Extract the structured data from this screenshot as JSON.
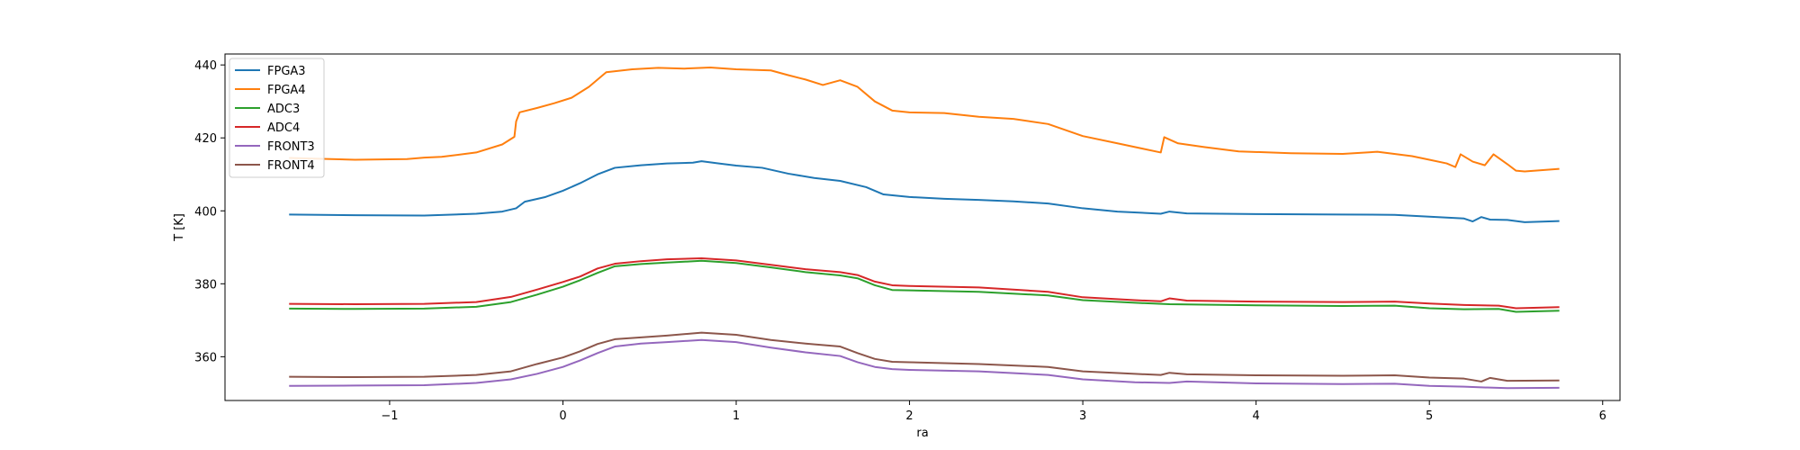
{
  "chart_data": {
    "type": "line",
    "title": "",
    "xlabel": "ra",
    "ylabel": "T [K]",
    "xlim": [
      -1.95,
      6.1
    ],
    "ylim": [
      348,
      443
    ],
    "xticks": [
      -1,
      0,
      1,
      2,
      3,
      4,
      5,
      6
    ],
    "xtick_labels": [
      "−1",
      "0",
      "1",
      "2",
      "3",
      "4",
      "5",
      "6"
    ],
    "yticks": [
      360,
      380,
      400,
      420,
      440
    ],
    "ytick_labels": [
      "360",
      "380",
      "400",
      "420",
      "440"
    ],
    "grid": false,
    "legend_position": "top-left",
    "series": [
      {
        "name": "FPGA3",
        "color": "#1f77b4",
        "points": [
          [
            -1.58,
            399.0
          ],
          [
            -1.2,
            398.8
          ],
          [
            -0.8,
            398.7
          ],
          [
            -0.5,
            399.2
          ],
          [
            -0.35,
            399.8
          ],
          [
            -0.27,
            400.7
          ],
          [
            -0.22,
            402.5
          ],
          [
            -0.1,
            403.8
          ],
          [
            0.0,
            405.5
          ],
          [
            0.1,
            407.6
          ],
          [
            0.2,
            410.0
          ],
          [
            0.3,
            411.8
          ],
          [
            0.45,
            412.5
          ],
          [
            0.6,
            413.0
          ],
          [
            0.75,
            413.2
          ],
          [
            0.8,
            413.6
          ],
          [
            0.9,
            413.0
          ],
          [
            1.0,
            412.4
          ],
          [
            1.15,
            411.8
          ],
          [
            1.3,
            410.2
          ],
          [
            1.45,
            409.0
          ],
          [
            1.6,
            408.2
          ],
          [
            1.75,
            406.5
          ],
          [
            1.85,
            404.5
          ],
          [
            2.0,
            403.8
          ],
          [
            2.2,
            403.3
          ],
          [
            2.4,
            403.0
          ],
          [
            2.6,
            402.6
          ],
          [
            2.8,
            402.0
          ],
          [
            3.0,
            400.7
          ],
          [
            3.2,
            399.8
          ],
          [
            3.45,
            399.2
          ],
          [
            3.5,
            399.8
          ],
          [
            3.6,
            399.3
          ],
          [
            4.0,
            399.1
          ],
          [
            4.5,
            399.0
          ],
          [
            4.8,
            398.9
          ],
          [
            5.0,
            398.4
          ],
          [
            5.2,
            397.9
          ],
          [
            5.25,
            397.1
          ],
          [
            5.3,
            398.3
          ],
          [
            5.35,
            397.6
          ],
          [
            5.45,
            397.5
          ],
          [
            5.55,
            396.9
          ],
          [
            5.75,
            397.2
          ]
        ]
      },
      {
        "name": "FPGA4",
        "color": "#ff7f0e",
        "points": [
          [
            -1.58,
            414.5
          ],
          [
            -1.2,
            414.0
          ],
          [
            -0.9,
            414.2
          ],
          [
            -0.8,
            414.6
          ],
          [
            -0.7,
            414.8
          ],
          [
            -0.5,
            416.0
          ],
          [
            -0.35,
            418.2
          ],
          [
            -0.28,
            420.3
          ],
          [
            -0.27,
            424.5
          ],
          [
            -0.25,
            427.0
          ],
          [
            -0.15,
            428.2
          ],
          [
            -0.05,
            429.5
          ],
          [
            0.05,
            431.0
          ],
          [
            0.15,
            434.0
          ],
          [
            0.25,
            438.0
          ],
          [
            0.4,
            438.8
          ],
          [
            0.55,
            439.2
          ],
          [
            0.7,
            439.0
          ],
          [
            0.85,
            439.3
          ],
          [
            1.0,
            438.8
          ],
          [
            1.2,
            438.5
          ],
          [
            1.3,
            437.2
          ],
          [
            1.4,
            436.0
          ],
          [
            1.5,
            434.5
          ],
          [
            1.6,
            435.8
          ],
          [
            1.7,
            434.0
          ],
          [
            1.8,
            430.0
          ],
          [
            1.9,
            427.5
          ],
          [
            2.0,
            427.0
          ],
          [
            2.2,
            426.8
          ],
          [
            2.4,
            425.8
          ],
          [
            2.6,
            425.2
          ],
          [
            2.8,
            423.8
          ],
          [
            3.0,
            420.5
          ],
          [
            3.2,
            418.5
          ],
          [
            3.35,
            417.0
          ],
          [
            3.45,
            416.0
          ],
          [
            3.47,
            420.2
          ],
          [
            3.55,
            418.5
          ],
          [
            3.7,
            417.5
          ],
          [
            3.9,
            416.3
          ],
          [
            4.2,
            415.8
          ],
          [
            4.5,
            415.6
          ],
          [
            4.7,
            416.2
          ],
          [
            4.9,
            415.0
          ],
          [
            5.0,
            414.0
          ],
          [
            5.1,
            413.0
          ],
          [
            5.15,
            412.0
          ],
          [
            5.18,
            415.5
          ],
          [
            5.25,
            413.5
          ],
          [
            5.32,
            412.5
          ],
          [
            5.37,
            415.5
          ],
          [
            5.45,
            412.8
          ],
          [
            5.5,
            411.0
          ],
          [
            5.55,
            410.8
          ],
          [
            5.75,
            411.5
          ]
        ]
      },
      {
        "name": "ADC3",
        "color": "#2ca02c",
        "points": [
          [
            -1.58,
            373.2
          ],
          [
            -1.2,
            373.1
          ],
          [
            -0.8,
            373.2
          ],
          [
            -0.5,
            373.7
          ],
          [
            -0.3,
            375.0
          ],
          [
            -0.15,
            377.0
          ],
          [
            0.0,
            379.2
          ],
          [
            0.1,
            381.0
          ],
          [
            0.2,
            383.0
          ],
          [
            0.3,
            384.8
          ],
          [
            0.45,
            385.4
          ],
          [
            0.6,
            385.8
          ],
          [
            0.8,
            386.3
          ],
          [
            1.0,
            385.7
          ],
          [
            1.2,
            384.5
          ],
          [
            1.4,
            383.2
          ],
          [
            1.6,
            382.3
          ],
          [
            1.7,
            381.5
          ],
          [
            1.8,
            379.6
          ],
          [
            1.9,
            378.3
          ],
          [
            2.0,
            378.2
          ],
          [
            2.4,
            377.8
          ],
          [
            2.8,
            376.8
          ],
          [
            3.0,
            375.5
          ],
          [
            3.3,
            374.8
          ],
          [
            3.5,
            374.4
          ],
          [
            4.0,
            374.1
          ],
          [
            4.5,
            373.9
          ],
          [
            4.8,
            374.0
          ],
          [
            5.0,
            373.3
          ],
          [
            5.2,
            373.0
          ],
          [
            5.4,
            373.1
          ],
          [
            5.5,
            372.3
          ],
          [
            5.75,
            372.6
          ]
        ]
      },
      {
        "name": "ADC4",
        "color": "#d62728",
        "points": [
          [
            -1.58,
            374.5
          ],
          [
            -1.2,
            374.4
          ],
          [
            -0.8,
            374.5
          ],
          [
            -0.5,
            375.0
          ],
          [
            -0.3,
            376.4
          ],
          [
            -0.15,
            378.4
          ],
          [
            0.0,
            380.5
          ],
          [
            0.1,
            382.0
          ],
          [
            0.2,
            384.2
          ],
          [
            0.3,
            385.5
          ],
          [
            0.45,
            386.2
          ],
          [
            0.6,
            386.7
          ],
          [
            0.8,
            387.0
          ],
          [
            1.0,
            386.4
          ],
          [
            1.2,
            385.2
          ],
          [
            1.4,
            384.0
          ],
          [
            1.6,
            383.2
          ],
          [
            1.7,
            382.4
          ],
          [
            1.8,
            380.6
          ],
          [
            1.9,
            379.6
          ],
          [
            2.0,
            379.4
          ],
          [
            2.4,
            379.0
          ],
          [
            2.8,
            377.8
          ],
          [
            3.0,
            376.3
          ],
          [
            3.3,
            375.5
          ],
          [
            3.45,
            375.2
          ],
          [
            3.5,
            376.0
          ],
          [
            3.6,
            375.4
          ],
          [
            4.0,
            375.1
          ],
          [
            4.5,
            375.0
          ],
          [
            4.8,
            375.1
          ],
          [
            5.0,
            374.6
          ],
          [
            5.2,
            374.2
          ],
          [
            5.4,
            374.0
          ],
          [
            5.5,
            373.3
          ],
          [
            5.75,
            373.6
          ]
        ]
      },
      {
        "name": "FRONT3",
        "color": "#9467bd",
        "points": [
          [
            -1.58,
            352.0
          ],
          [
            -1.2,
            352.1
          ],
          [
            -0.8,
            352.2
          ],
          [
            -0.5,
            352.8
          ],
          [
            -0.3,
            353.8
          ],
          [
            -0.15,
            355.3
          ],
          [
            0.0,
            357.2
          ],
          [
            0.1,
            359.0
          ],
          [
            0.2,
            361.0
          ],
          [
            0.3,
            362.8
          ],
          [
            0.45,
            363.6
          ],
          [
            0.6,
            364.0
          ],
          [
            0.8,
            364.6
          ],
          [
            1.0,
            364.0
          ],
          [
            1.2,
            362.5
          ],
          [
            1.4,
            361.2
          ],
          [
            1.6,
            360.2
          ],
          [
            1.7,
            358.5
          ],
          [
            1.8,
            357.2
          ],
          [
            1.9,
            356.6
          ],
          [
            2.0,
            356.4
          ],
          [
            2.4,
            356.0
          ],
          [
            2.8,
            355.0
          ],
          [
            3.0,
            353.8
          ],
          [
            3.3,
            353.0
          ],
          [
            3.5,
            352.8
          ],
          [
            3.6,
            353.2
          ],
          [
            4.0,
            352.7
          ],
          [
            4.5,
            352.5
          ],
          [
            4.8,
            352.6
          ],
          [
            5.0,
            352.0
          ],
          [
            5.2,
            351.8
          ],
          [
            5.3,
            351.6
          ],
          [
            5.45,
            351.4
          ],
          [
            5.75,
            351.5
          ]
        ]
      },
      {
        "name": "FRONT4",
        "color": "#8c564b",
        "points": [
          [
            -1.58,
            354.5
          ],
          [
            -1.2,
            354.4
          ],
          [
            -0.8,
            354.5
          ],
          [
            -0.5,
            355.0
          ],
          [
            -0.3,
            356.0
          ],
          [
            -0.15,
            358.0
          ],
          [
            0.0,
            359.8
          ],
          [
            0.1,
            361.5
          ],
          [
            0.2,
            363.5
          ],
          [
            0.3,
            364.8
          ],
          [
            0.45,
            365.3
          ],
          [
            0.6,
            365.8
          ],
          [
            0.8,
            366.6
          ],
          [
            1.0,
            366.0
          ],
          [
            1.2,
            364.6
          ],
          [
            1.4,
            363.6
          ],
          [
            1.6,
            362.8
          ],
          [
            1.7,
            361.0
          ],
          [
            1.8,
            359.4
          ],
          [
            1.9,
            358.6
          ],
          [
            2.0,
            358.5
          ],
          [
            2.4,
            358.0
          ],
          [
            2.8,
            357.2
          ],
          [
            3.0,
            356.0
          ],
          [
            3.3,
            355.3
          ],
          [
            3.45,
            355.0
          ],
          [
            3.5,
            355.6
          ],
          [
            3.6,
            355.2
          ],
          [
            4.0,
            354.9
          ],
          [
            4.5,
            354.8
          ],
          [
            4.8,
            354.9
          ],
          [
            5.0,
            354.3
          ],
          [
            5.2,
            354.0
          ],
          [
            5.3,
            353.2
          ],
          [
            5.35,
            354.2
          ],
          [
            5.45,
            353.4
          ],
          [
            5.75,
            353.5
          ]
        ]
      }
    ]
  }
}
